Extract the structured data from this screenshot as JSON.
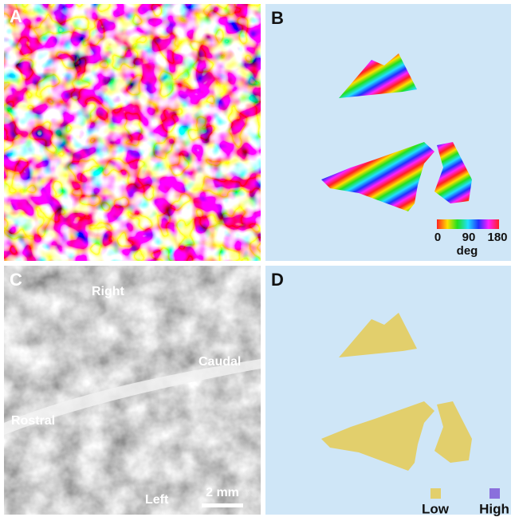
{
  "panels": {
    "a": {
      "label": "A"
    },
    "b": {
      "label": "B",
      "colorbar": {
        "ticks": [
          "0",
          "90",
          "180"
        ],
        "unit": "deg"
      }
    },
    "c": {
      "label": "C",
      "annotations": [
        "Right",
        "Caudal",
        "Rostral",
        "Left"
      ],
      "scale_bar": "2 mm"
    },
    "d": {
      "label": "D",
      "legend": [
        "Low",
        "High"
      ]
    }
  }
}
